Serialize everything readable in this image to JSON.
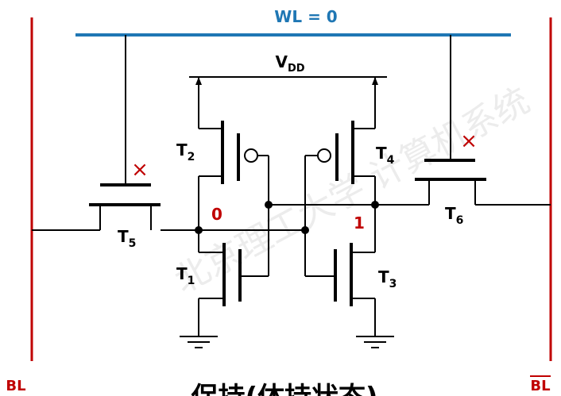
{
  "wordline": {
    "label": "WL = 0"
  },
  "supply": {
    "main": "V",
    "sub": "DD"
  },
  "bitlines": {
    "left": "BL",
    "right": "BL"
  },
  "transistors": {
    "t1": {
      "main": "T",
      "sub": "1"
    },
    "t2": {
      "main": "T",
      "sub": "2"
    },
    "t3": {
      "main": "T",
      "sub": "3"
    },
    "t4": {
      "main": "T",
      "sub": "4"
    },
    "t5": {
      "main": "T",
      "sub": "5"
    },
    "t6": {
      "main": "T",
      "sub": "6"
    }
  },
  "nodes": {
    "left_value": "0",
    "right_value": "1"
  },
  "marks": {
    "t5_off": "×",
    "t6_off": "×"
  },
  "caption": "保持(体持状态)",
  "watermark": "北京理工大学 计算机系统",
  "colors": {
    "wordline": "#1f77b4",
    "bitline": "#c00000",
    "wire": "#000000",
    "value": "#c00000",
    "watermark": "#e6e6e6"
  }
}
